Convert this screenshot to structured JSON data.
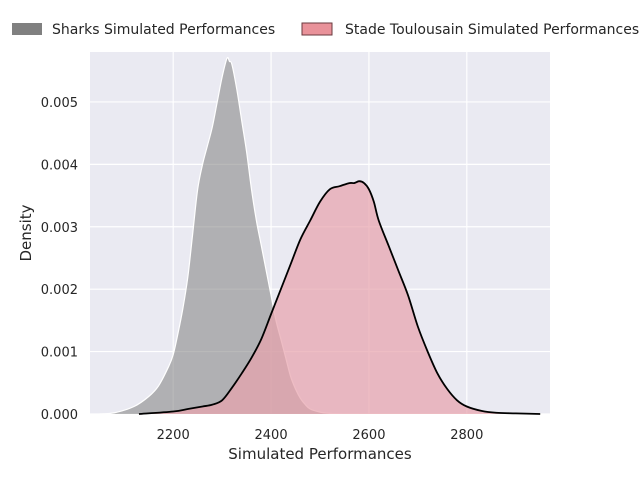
{
  "chart_data": {
    "type": "area",
    "title": "",
    "xlabel": "Simulated Performances",
    "ylabel": "Density",
    "xlim": [
      2030,
      2970
    ],
    "ylim": [
      0,
      0.0058
    ],
    "xticks": [
      2200,
      2400,
      2600,
      2800
    ],
    "yticks": [
      0.0,
      0.001,
      0.002,
      0.003,
      0.004,
      0.005
    ],
    "ytick_labels": [
      "0.000",
      "0.001",
      "0.002",
      "0.003",
      "0.004",
      "0.005"
    ],
    "grid": true,
    "legend_position": "top",
    "series": [
      {
        "name": "Sharks Simulated Performances",
        "fill": "#808080",
        "fill_opacity": 0.55,
        "stroke": "#ffffff",
        "legend_swatch": "#808080",
        "x": [
          2050,
          2080,
          2120,
          2150,
          2170,
          2190,
          2200,
          2210,
          2220,
          2230,
          2240,
          2250,
          2260,
          2270,
          2280,
          2290,
          2300,
          2310,
          2315,
          2320,
          2330,
          2340,
          2350,
          2360,
          2370,
          2380,
          2390,
          2400,
          2410,
          2420,
          2430,
          2440,
          2450,
          2460,
          2470,
          2480,
          2500,
          2520,
          2550,
          2580
        ],
        "y": [
          0.0,
          2e-05,
          0.00012,
          0.00028,
          0.00045,
          0.00075,
          0.00095,
          0.0013,
          0.0017,
          0.0022,
          0.0029,
          0.0036,
          0.004,
          0.0043,
          0.0046,
          0.005,
          0.0054,
          0.0057,
          0.00565,
          0.0056,
          0.0052,
          0.0047,
          0.0042,
          0.0036,
          0.0031,
          0.0027,
          0.0023,
          0.0019,
          0.0015,
          0.0012,
          0.0009,
          0.0006,
          0.0004,
          0.00025,
          0.00015,
          8e-05,
          3e-05,
          1e-05,
          0.0,
          0.0
        ]
      },
      {
        "name": "Stade Toulousain Simulated Performances",
        "fill": "#e8a3ad",
        "fill_opacity": 0.72,
        "stroke": "#000000",
        "legend_swatch": "#e7868f",
        "x": [
          2130,
          2200,
          2230,
          2260,
          2280,
          2300,
          2320,
          2340,
          2360,
          2380,
          2400,
          2420,
          2440,
          2460,
          2480,
          2500,
          2520,
          2540,
          2560,
          2570,
          2580,
          2590,
          2600,
          2610,
          2620,
          2640,
          2660,
          2680,
          2700,
          2720,
          2740,
          2760,
          2780,
          2800,
          2830,
          2860,
          2900,
          2950
        ],
        "y": [
          0.0,
          4e-05,
          8e-05,
          0.00012,
          0.00015,
          0.00022,
          0.00042,
          0.00065,
          0.0009,
          0.0012,
          0.0016,
          0.002,
          0.0024,
          0.0028,
          0.0031,
          0.0034,
          0.0036,
          0.00365,
          0.0037,
          0.0037,
          0.00373,
          0.0037,
          0.0036,
          0.0034,
          0.0031,
          0.0027,
          0.0023,
          0.0019,
          0.0014,
          0.001,
          0.00065,
          0.0004,
          0.00022,
          0.00012,
          5e-05,
          2e-05,
          1e-05,
          0.0
        ]
      }
    ]
  }
}
